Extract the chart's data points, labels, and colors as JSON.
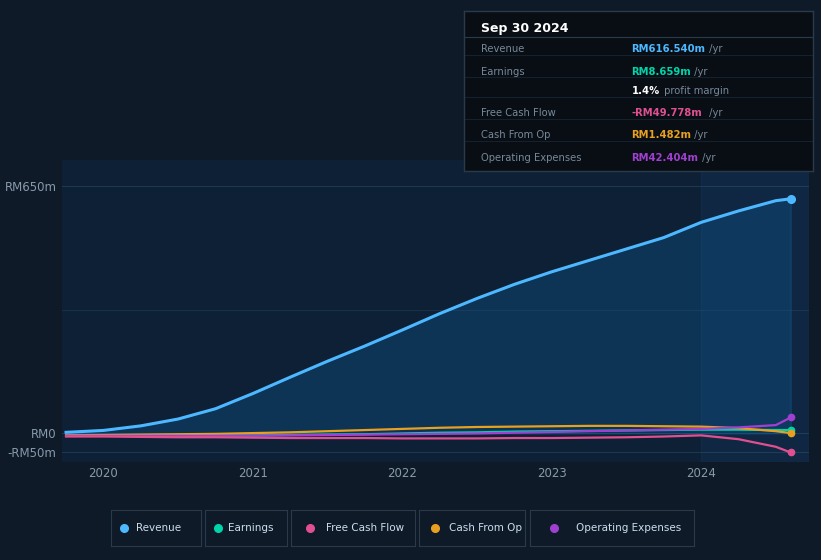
{
  "bg_color": "#0e1a27",
  "plot_bg": "#0d2035",
  "title_date": "Sep 30 2024",
  "ylim": [
    -75,
    720
  ],
  "yticks": [
    650,
    0,
    -50
  ],
  "ytick_labels": [
    "RM650m",
    "RM0",
    "-RM50m"
  ],
  "xticks": [
    2020,
    2021,
    2022,
    2023,
    2024
  ],
  "grid_color": "#1e3a52",
  "legend": [
    {
      "label": "Revenue",
      "color": "#4db8ff"
    },
    {
      "label": "Earnings",
      "color": "#00d4aa"
    },
    {
      "label": "Free Cash Flow",
      "color": "#e05090"
    },
    {
      "label": "Cash From Op",
      "color": "#e8a020"
    },
    {
      "label": "Operating Expenses",
      "color": "#a040d0"
    }
  ],
  "series": {
    "x": [
      2019.75,
      2020.0,
      2020.25,
      2020.5,
      2020.75,
      2021.0,
      2021.25,
      2021.5,
      2021.75,
      2022.0,
      2022.25,
      2022.5,
      2022.75,
      2023.0,
      2023.25,
      2023.5,
      2023.75,
      2024.0,
      2024.25,
      2024.5,
      2024.6
    ],
    "revenue": [
      3,
      8,
      20,
      38,
      65,
      105,
      148,
      190,
      230,
      272,
      315,
      355,
      392,
      425,
      455,
      485,
      515,
      555,
      585,
      612,
      617
    ],
    "earnings": [
      -5,
      -5,
      -5,
      -5,
      -5,
      -5,
      -4,
      -3,
      -2,
      0,
      2,
      3,
      5,
      6,
      7,
      8,
      9,
      10,
      10,
      9,
      9
    ],
    "fcf": [
      -8,
      -8,
      -9,
      -10,
      -10,
      -11,
      -12,
      -12,
      -12,
      -13,
      -13,
      -13,
      -12,
      -12,
      -11,
      -10,
      -8,
      -5,
      -15,
      -35,
      -50
    ],
    "cashfromop": [
      -5,
      -4,
      -3,
      -2,
      -1,
      1,
      3,
      6,
      9,
      12,
      15,
      17,
      18,
      19,
      20,
      20,
      19,
      18,
      14,
      6,
      1
    ],
    "opex": [
      -6,
      -6,
      -6,
      -6,
      -6,
      -6,
      -5,
      -4,
      -3,
      -2,
      -1,
      0,
      2,
      4,
      6,
      8,
      10,
      12,
      16,
      22,
      42
    ]
  },
  "infobox": {
    "date": "Sep 30 2024",
    "rows": [
      {
        "label": "Revenue",
        "value": "RM616.540m",
        "vcolor": "#4db8ff",
        "suffix": " /yr"
      },
      {
        "label": "Earnings",
        "value": "RM8.659m",
        "vcolor": "#00d4aa",
        "suffix": " /yr"
      },
      {
        "label": "",
        "value": "1.4%",
        "vcolor": "#ffffff",
        "suffix": " profit margin"
      },
      {
        "label": "Free Cash Flow",
        "value": "-RM49.778m",
        "vcolor": "#e05090",
        "suffix": " /yr"
      },
      {
        "label": "Cash From Op",
        "value": "RM1.482m",
        "vcolor": "#e8a020",
        "suffix": " /yr"
      },
      {
        "label": "Operating Expenses",
        "value": "RM42.404m",
        "vcolor": "#a040d0",
        "suffix": " /yr"
      }
    ]
  }
}
